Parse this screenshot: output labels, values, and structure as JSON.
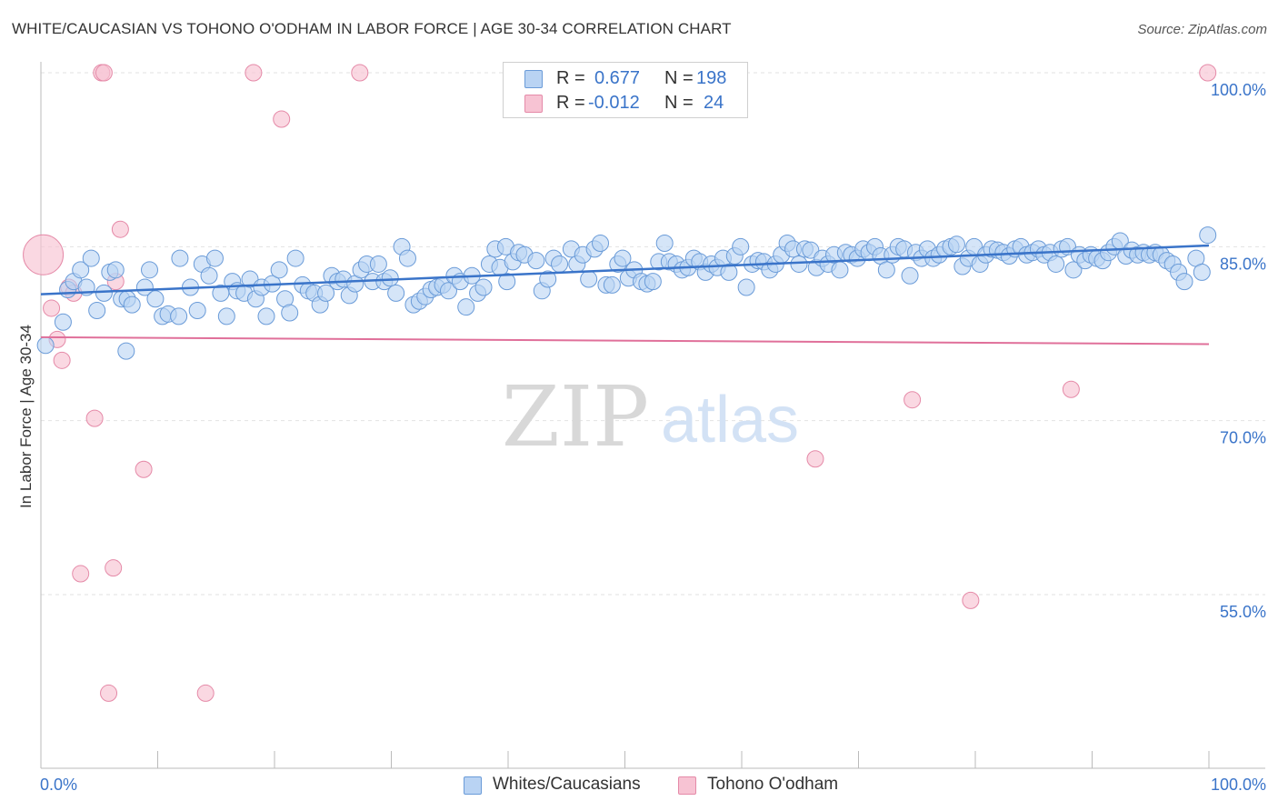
{
  "header": {
    "title": "WHITE/CAUCASIAN VS TOHONO O'ODHAM IN LABOR FORCE | AGE 30-34 CORRELATION CHART",
    "source": "Source: ZipAtlas.com"
  },
  "watermark": {
    "zip": "ZIP",
    "atlas": "atlas"
  },
  "legend": {
    "r_label": "R =",
    "n_label": "N =",
    "blue": {
      "r": "0.677",
      "n": "198"
    },
    "pink": {
      "r": "-0.012",
      "n": "24"
    }
  },
  "bottom_legend": {
    "blue_label": "Whites/Caucasians",
    "pink_label": "Tohono O'odham"
  },
  "colors": {
    "blue_fill": "#b9d3f3",
    "blue_stroke": "#6a9bd8",
    "blue_line": "#3a74c9",
    "pink_fill": "#f7c3d3",
    "pink_stroke": "#e58aa8",
    "pink_line": "#e0709a",
    "tick_label": "#3a74c9",
    "grid": "#e2e2e2"
  },
  "chart_data": {
    "type": "scatter",
    "title": "WHITE/CAUCASIAN VS TOHONO O'ODHAM IN LABOR FORCE | AGE 30-34 CORRELATION CHART",
    "xlabel": "",
    "ylabel": "In Labor Force | Age 30-34",
    "xlim": [
      0,
      100
    ],
    "ylim": [
      40,
      102
    ],
    "x_tick_labels": [
      "0.0%",
      "100.0%"
    ],
    "y_ticks": [
      55,
      70,
      85,
      100
    ],
    "y_tick_labels": [
      "55.0%",
      "70.0%",
      "85.0%",
      "100.0%"
    ],
    "series": [
      {
        "name": "Whites/Caucasians",
        "color": "blue",
        "trend": {
          "x": [
            0,
            100
          ],
          "y": [
            80.9,
            85.1
          ]
        },
        "points": [
          [
            0.4,
            76.5
          ],
          [
            1.9,
            78.5
          ],
          [
            2.3,
            81.3
          ],
          [
            2.8,
            82
          ],
          [
            3.4,
            83
          ],
          [
            3.9,
            81.5
          ],
          [
            4.3,
            84
          ],
          [
            4.8,
            79.5
          ],
          [
            5.4,
            81
          ],
          [
            5.9,
            82.8
          ],
          [
            6.4,
            83
          ],
          [
            6.9,
            80.5
          ],
          [
            7.4,
            80.5
          ],
          [
            7.8,
            80
          ],
          [
            7.3,
            76
          ],
          [
            8.9,
            81.5
          ],
          [
            9.3,
            83
          ],
          [
            9.8,
            80.5
          ],
          [
            10.4,
            79
          ],
          [
            10.9,
            79.2
          ],
          [
            11.8,
            79
          ],
          [
            11.9,
            84
          ],
          [
            12.8,
            81.5
          ],
          [
            13.4,
            79.5
          ],
          [
            13.8,
            83.5
          ],
          [
            14.4,
            82.5
          ],
          [
            14.9,
            84
          ],
          [
            15.4,
            81
          ],
          [
            15.9,
            79
          ],
          [
            16.4,
            82
          ],
          [
            16.8,
            81.2
          ],
          [
            17.4,
            81
          ],
          [
            17.9,
            82.2
          ],
          [
            18.4,
            80.5
          ],
          [
            18.9,
            81.5
          ],
          [
            19.3,
            79
          ],
          [
            19.8,
            81.8
          ],
          [
            20.4,
            83
          ],
          [
            20.9,
            80.5
          ],
          [
            21.3,
            79.3
          ],
          [
            21.8,
            84
          ],
          [
            22.4,
            81.7
          ],
          [
            22.9,
            81.2
          ],
          [
            23.4,
            81
          ],
          [
            23.9,
            80
          ],
          [
            24.4,
            81
          ],
          [
            24.9,
            82.5
          ],
          [
            25.4,
            82
          ],
          [
            25.9,
            82.2
          ],
          [
            26.4,
            80.8
          ],
          [
            26.9,
            81.8
          ],
          [
            27.4,
            83
          ],
          [
            27.9,
            83.5
          ],
          [
            28.4,
            82
          ],
          [
            28.9,
            83.5
          ],
          [
            29.4,
            82
          ],
          [
            29.9,
            82.3
          ],
          [
            30.4,
            81
          ],
          [
            30.9,
            85
          ],
          [
            31.4,
            84
          ],
          [
            31.9,
            80
          ],
          [
            32.4,
            80.3
          ],
          [
            32.9,
            80.7
          ],
          [
            33.4,
            81.3
          ],
          [
            33.9,
            81.5
          ],
          [
            34.4,
            81.7
          ],
          [
            34.9,
            81.2
          ],
          [
            35.4,
            82.5
          ],
          [
            35.9,
            82
          ],
          [
            36.4,
            79.8
          ],
          [
            36.9,
            82.5
          ],
          [
            37.4,
            81
          ],
          [
            37.9,
            81.5
          ],
          [
            38.4,
            83.5
          ],
          [
            39.9,
            82
          ],
          [
            38.9,
            84.8
          ],
          [
            39.3,
            83.2
          ],
          [
            39.8,
            85
          ],
          [
            40.4,
            83.7
          ],
          [
            40.9,
            84.5
          ],
          [
            41.4,
            84.3
          ],
          [
            42.4,
            83.8
          ],
          [
            42.9,
            81.2
          ],
          [
            43.4,
            82.2
          ],
          [
            43.9,
            84
          ],
          [
            44.4,
            83.5
          ],
          [
            45.4,
            84.8
          ],
          [
            45.9,
            83.5
          ],
          [
            46.4,
            84.3
          ],
          [
            46.9,
            82.2
          ],
          [
            47.4,
            84.8
          ],
          [
            47.9,
            85.3
          ],
          [
            48.4,
            81.7
          ],
          [
            48.9,
            81.7
          ],
          [
            49.4,
            83.5
          ],
          [
            49.8,
            84
          ],
          [
            50.3,
            82.3
          ],
          [
            50.8,
            83
          ],
          [
            51.4,
            82
          ],
          [
            51.9,
            81.8
          ],
          [
            52.4,
            82
          ],
          [
            52.9,
            83.7
          ],
          [
            53.4,
            85.3
          ],
          [
            53.8,
            83.7
          ],
          [
            54.4,
            83.5
          ],
          [
            54.9,
            83
          ],
          [
            55.4,
            83.2
          ],
          [
            55.9,
            84
          ],
          [
            56.4,
            83.7
          ],
          [
            56.9,
            82.8
          ],
          [
            57.4,
            83.5
          ],
          [
            57.9,
            83.2
          ],
          [
            58.4,
            84
          ],
          [
            58.9,
            82.8
          ],
          [
            59.4,
            84.2
          ],
          [
            59.9,
            85
          ],
          [
            60.4,
            81.5
          ],
          [
            60.9,
            83.5
          ],
          [
            61.4,
            83.8
          ],
          [
            61.9,
            83.7
          ],
          [
            62.4,
            83
          ],
          [
            62.9,
            83.5
          ],
          [
            63.4,
            84.3
          ],
          [
            63.9,
            85.3
          ],
          [
            64.4,
            84.8
          ],
          [
            64.9,
            83.5
          ],
          [
            65.4,
            84.8
          ],
          [
            65.9,
            84.7
          ],
          [
            66.4,
            83.2
          ],
          [
            66.9,
            84
          ],
          [
            67.4,
            83.5
          ],
          [
            67.9,
            84.3
          ],
          [
            68.4,
            83
          ],
          [
            68.9,
            84.5
          ],
          [
            69.4,
            84.3
          ],
          [
            69.9,
            84
          ],
          [
            70.4,
            84.8
          ],
          [
            70.9,
            84.5
          ],
          [
            71.4,
            85
          ],
          [
            71.9,
            84.2
          ],
          [
            72.4,
            83
          ],
          [
            72.9,
            84.3
          ],
          [
            73.4,
            85
          ],
          [
            73.9,
            84.8
          ],
          [
            74.4,
            82.5
          ],
          [
            74.9,
            84.5
          ],
          [
            75.4,
            84
          ],
          [
            75.9,
            84.8
          ],
          [
            76.4,
            84
          ],
          [
            76.9,
            84.3
          ],
          [
            77.4,
            84.8
          ],
          [
            77.9,
            85
          ],
          [
            78.4,
            85.2
          ],
          [
            78.9,
            83.3
          ],
          [
            79.4,
            84
          ],
          [
            79.9,
            85
          ],
          [
            80.4,
            83.5
          ],
          [
            80.9,
            84.3
          ],
          [
            81.4,
            84.8
          ],
          [
            81.9,
            84.7
          ],
          [
            82.4,
            84.5
          ],
          [
            82.9,
            84.2
          ],
          [
            83.4,
            84.8
          ],
          [
            83.9,
            85
          ],
          [
            84.4,
            84.3
          ],
          [
            84.9,
            84.5
          ],
          [
            85.4,
            84.8
          ],
          [
            85.9,
            84.3
          ],
          [
            86.4,
            84.5
          ],
          [
            86.9,
            83.5
          ],
          [
            87.4,
            84.8
          ],
          [
            87.9,
            85
          ],
          [
            88.4,
            83
          ],
          [
            88.9,
            84.3
          ],
          [
            89.4,
            83.8
          ],
          [
            89.9,
            84.3
          ],
          [
            90.4,
            84
          ],
          [
            90.9,
            83.8
          ],
          [
            91.4,
            84.5
          ],
          [
            91.9,
            85
          ],
          [
            92.4,
            85.5
          ],
          [
            92.9,
            84.2
          ],
          [
            93.4,
            84.7
          ],
          [
            93.9,
            84.3
          ],
          [
            94.4,
            84.5
          ],
          [
            94.9,
            84.3
          ],
          [
            95.4,
            84.5
          ],
          [
            95.9,
            84.3
          ],
          [
            96.4,
            83.8
          ],
          [
            96.9,
            83.5
          ],
          [
            97.4,
            82.8
          ],
          [
            97.9,
            82
          ],
          [
            98.9,
            84
          ],
          [
            99.4,
            82.8
          ],
          [
            99.9,
            86
          ]
        ]
      },
      {
        "name": "Tohono O'odham",
        "color": "pink",
        "trend": {
          "x": [
            0,
            100
          ],
          "y": [
            77.2,
            76.6
          ]
        },
        "points": [
          [
            0.2,
            84.3
          ],
          [
            0.9,
            79.7
          ],
          [
            1.4,
            77
          ],
          [
            1.8,
            75.2
          ],
          [
            2.4,
            81.5
          ],
          [
            2.8,
            81
          ],
          [
            3.4,
            56.8
          ],
          [
            4.6,
            70.2
          ],
          [
            5.2,
            100
          ],
          [
            5.4,
            100
          ],
          [
            5.8,
            46.5
          ],
          [
            6.2,
            57.3
          ],
          [
            6.4,
            82
          ],
          [
            6.8,
            86.5
          ],
          [
            8.8,
            65.8
          ],
          [
            14.1,
            46.5
          ],
          [
            18.2,
            100
          ],
          [
            20.6,
            96
          ],
          [
            27.3,
            100
          ],
          [
            66.3,
            66.7
          ],
          [
            74.6,
            71.8
          ],
          [
            79.6,
            54.5
          ],
          [
            88.2,
            72.7
          ],
          [
            99.9,
            100
          ]
        ]
      }
    ]
  }
}
